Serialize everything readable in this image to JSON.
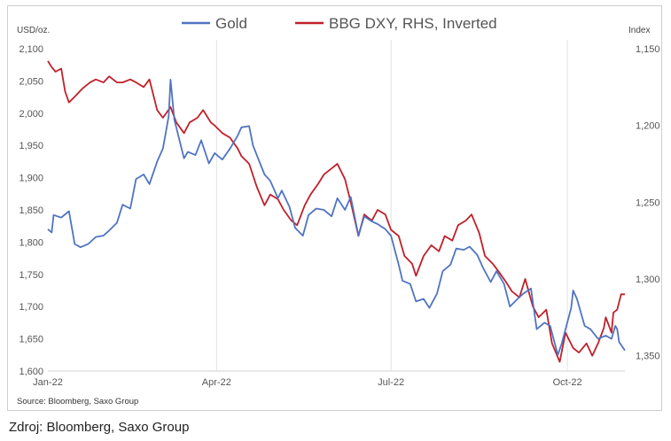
{
  "caption": "Zdroj: Bloomberg, Saxo Group",
  "chart_data": {
    "type": "line",
    "source": "Source: Bloomberg, Saxo Group",
    "ylabel_left": "USD/oz.",
    "ylabel_right": "Index",
    "ylim_left": [
      1600,
      2100
    ],
    "yticks_left": [
      "1,600",
      "1,650",
      "1,700",
      "1,750",
      "1,800",
      "1,850",
      "1,900",
      "1,950",
      "2,000",
      "2,050",
      "2,100"
    ],
    "ylim_right": [
      1150,
      1360
    ],
    "right_inverted": true,
    "yticks_right": [
      "1,150",
      "1,200",
      "1,250",
      "1,300",
      "1,350"
    ],
    "xlim": [
      "2022-01-03",
      "2022-10-31"
    ],
    "xticks": [
      {
        "date": "2022-01-03",
        "label": "Jan-22"
      },
      {
        "date": "2022-04-01",
        "label": "Apr-22"
      },
      {
        "date": "2022-07-01",
        "label": "Jul-22"
      },
      {
        "date": "2022-10-01",
        "label": "Oct-22"
      }
    ],
    "gridlines": "vertical at x ticks",
    "legend_position": "top",
    "series": [
      {
        "name": "Gold",
        "axis": "left",
        "color": "#4f74c2",
        "points": [
          [
            "2022-01-03",
            1820
          ],
          [
            "2022-01-05",
            1815
          ],
          [
            "2022-01-06",
            1842
          ],
          [
            "2022-01-10",
            1838
          ],
          [
            "2022-01-14",
            1848
          ],
          [
            "2022-01-17",
            1797
          ],
          [
            "2022-01-20",
            1792
          ],
          [
            "2022-01-24",
            1797
          ],
          [
            "2022-01-28",
            1808
          ],
          [
            "2022-02-01",
            1810
          ],
          [
            "2022-02-04",
            1818
          ],
          [
            "2022-02-08",
            1830
          ],
          [
            "2022-02-11",
            1858
          ],
          [
            "2022-02-15",
            1852
          ],
          [
            "2022-02-18",
            1898
          ],
          [
            "2022-02-22",
            1905
          ],
          [
            "2022-02-25",
            1890
          ],
          [
            "2022-03-01",
            1925
          ],
          [
            "2022-03-04",
            1945
          ],
          [
            "2022-03-07",
            1995
          ],
          [
            "2022-03-08",
            2052
          ],
          [
            "2022-03-10",
            1990
          ],
          [
            "2022-03-15",
            1930
          ],
          [
            "2022-03-17",
            1940
          ],
          [
            "2022-03-21",
            1935
          ],
          [
            "2022-03-24",
            1958
          ],
          [
            "2022-03-28",
            1922
          ],
          [
            "2022-03-31",
            1938
          ],
          [
            "2022-04-04",
            1928
          ],
          [
            "2022-04-08",
            1945
          ],
          [
            "2022-04-12",
            1965
          ],
          [
            "2022-04-14",
            1978
          ],
          [
            "2022-04-18",
            1980
          ],
          [
            "2022-04-20",
            1950
          ],
          [
            "2022-04-22",
            1935
          ],
          [
            "2022-04-26",
            1905
          ],
          [
            "2022-04-29",
            1895
          ],
          [
            "2022-05-03",
            1868
          ],
          [
            "2022-05-05",
            1880
          ],
          [
            "2022-05-09",
            1855
          ],
          [
            "2022-05-12",
            1822
          ],
          [
            "2022-05-16",
            1810
          ],
          [
            "2022-05-19",
            1842
          ],
          [
            "2022-05-23",
            1852
          ],
          [
            "2022-05-27",
            1850
          ],
          [
            "2022-05-31",
            1840
          ],
          [
            "2022-06-03",
            1868
          ],
          [
            "2022-06-07",
            1850
          ],
          [
            "2022-06-10",
            1870
          ],
          [
            "2022-06-14",
            1810
          ],
          [
            "2022-06-17",
            1840
          ],
          [
            "2022-06-21",
            1832
          ],
          [
            "2022-06-24",
            1828
          ],
          [
            "2022-06-28",
            1820
          ],
          [
            "2022-07-01",
            1810
          ],
          [
            "2022-07-05",
            1765
          ],
          [
            "2022-07-07",
            1740
          ],
          [
            "2022-07-11",
            1735
          ],
          [
            "2022-07-14",
            1708
          ],
          [
            "2022-07-18",
            1712
          ],
          [
            "2022-07-21",
            1698
          ],
          [
            "2022-07-25",
            1720
          ],
          [
            "2022-07-28",
            1755
          ],
          [
            "2022-08-01",
            1765
          ],
          [
            "2022-08-04",
            1790
          ],
          [
            "2022-08-08",
            1788
          ],
          [
            "2022-08-11",
            1793
          ],
          [
            "2022-08-15",
            1780
          ],
          [
            "2022-08-18",
            1760
          ],
          [
            "2022-08-22",
            1738
          ],
          [
            "2022-08-25",
            1755
          ],
          [
            "2022-08-29",
            1735
          ],
          [
            "2022-09-01",
            1700
          ],
          [
            "2022-09-05",
            1712
          ],
          [
            "2022-09-08",
            1720
          ],
          [
            "2022-09-12",
            1728
          ],
          [
            "2022-09-15",
            1665
          ],
          [
            "2022-09-19",
            1675
          ],
          [
            "2022-09-22",
            1670
          ],
          [
            "2022-09-26",
            1625
          ],
          [
            "2022-09-28",
            1642
          ],
          [
            "2022-10-03",
            1698
          ],
          [
            "2022-10-04",
            1725
          ],
          [
            "2022-10-06",
            1712
          ],
          [
            "2022-10-10",
            1670
          ],
          [
            "2022-10-13",
            1665
          ],
          [
            "2022-10-17",
            1650
          ],
          [
            "2022-10-21",
            1655
          ],
          [
            "2022-10-24",
            1650
          ],
          [
            "2022-10-26",
            1670
          ],
          [
            "2022-10-27",
            1665
          ],
          [
            "2022-10-28",
            1645
          ],
          [
            "2022-10-31",
            1632
          ]
        ]
      },
      {
        "name": "BBG DXY, RHS, Inverted",
        "axis": "right",
        "color": "#c0202a",
        "points": [
          [
            "2022-01-03",
            1158
          ],
          [
            "2022-01-05",
            1162
          ],
          [
            "2022-01-07",
            1165
          ],
          [
            "2022-01-10",
            1163
          ],
          [
            "2022-01-12",
            1178
          ],
          [
            "2022-01-14",
            1185
          ],
          [
            "2022-01-18",
            1180
          ],
          [
            "2022-01-21",
            1176
          ],
          [
            "2022-01-25",
            1172
          ],
          [
            "2022-01-28",
            1170
          ],
          [
            "2022-02-01",
            1172
          ],
          [
            "2022-02-04",
            1168
          ],
          [
            "2022-02-08",
            1172
          ],
          [
            "2022-02-11",
            1172
          ],
          [
            "2022-02-15",
            1170
          ],
          [
            "2022-02-18",
            1172
          ],
          [
            "2022-02-22",
            1175
          ],
          [
            "2022-02-25",
            1170
          ],
          [
            "2022-03-01",
            1190
          ],
          [
            "2022-03-04",
            1195
          ],
          [
            "2022-03-08",
            1188
          ],
          [
            "2022-03-11",
            1198
          ],
          [
            "2022-03-15",
            1205
          ],
          [
            "2022-03-18",
            1198
          ],
          [
            "2022-03-22",
            1195
          ],
          [
            "2022-03-25",
            1190
          ],
          [
            "2022-03-29",
            1198
          ],
          [
            "2022-03-31",
            1200
          ],
          [
            "2022-04-04",
            1205
          ],
          [
            "2022-04-08",
            1208
          ],
          [
            "2022-04-12",
            1215
          ],
          [
            "2022-04-14",
            1220
          ],
          [
            "2022-04-18",
            1225
          ],
          [
            "2022-04-22",
            1240
          ],
          [
            "2022-04-26",
            1252
          ],
          [
            "2022-04-29",
            1245
          ],
          [
            "2022-05-03",
            1248
          ],
          [
            "2022-05-06",
            1255
          ],
          [
            "2022-05-10",
            1262
          ],
          [
            "2022-05-13",
            1265
          ],
          [
            "2022-05-17",
            1252
          ],
          [
            "2022-05-20",
            1245
          ],
          [
            "2022-05-24",
            1238
          ],
          [
            "2022-05-27",
            1232
          ],
          [
            "2022-05-31",
            1228
          ],
          [
            "2022-06-03",
            1225
          ],
          [
            "2022-06-07",
            1235
          ],
          [
            "2022-06-10",
            1250
          ],
          [
            "2022-06-14",
            1272
          ],
          [
            "2022-06-17",
            1258
          ],
          [
            "2022-06-21",
            1262
          ],
          [
            "2022-06-24",
            1255
          ],
          [
            "2022-06-28",
            1258
          ],
          [
            "2022-07-01",
            1268
          ],
          [
            "2022-07-05",
            1272
          ],
          [
            "2022-07-08",
            1285
          ],
          [
            "2022-07-12",
            1290
          ],
          [
            "2022-07-14",
            1298
          ],
          [
            "2022-07-18",
            1285
          ],
          [
            "2022-07-22",
            1278
          ],
          [
            "2022-07-26",
            1282
          ],
          [
            "2022-07-29",
            1272
          ],
          [
            "2022-08-02",
            1275
          ],
          [
            "2022-08-05",
            1265
          ],
          [
            "2022-08-09",
            1262
          ],
          [
            "2022-08-12",
            1258
          ],
          [
            "2022-08-16",
            1270
          ],
          [
            "2022-08-19",
            1285
          ],
          [
            "2022-08-23",
            1290
          ],
          [
            "2022-08-26",
            1295
          ],
          [
            "2022-08-30",
            1302
          ],
          [
            "2022-09-02",
            1308
          ],
          [
            "2022-09-06",
            1312
          ],
          [
            "2022-09-09",
            1300
          ],
          [
            "2022-09-13",
            1318
          ],
          [
            "2022-09-16",
            1325
          ],
          [
            "2022-09-20",
            1320
          ],
          [
            "2022-09-23",
            1342
          ],
          [
            "2022-09-27",
            1354
          ],
          [
            "2022-09-30",
            1335
          ],
          [
            "2022-10-04",
            1345
          ],
          [
            "2022-10-07",
            1348
          ],
          [
            "2022-10-11",
            1342
          ],
          [
            "2022-10-14",
            1350
          ],
          [
            "2022-10-17",
            1342
          ],
          [
            "2022-10-20",
            1332
          ],
          [
            "2022-10-21",
            1325
          ],
          [
            "2022-10-24",
            1335
          ],
          [
            "2022-10-25",
            1322
          ],
          [
            "2022-10-27",
            1320
          ],
          [
            "2022-10-29",
            1310
          ],
          [
            "2022-10-31",
            1310
          ]
        ]
      }
    ]
  }
}
